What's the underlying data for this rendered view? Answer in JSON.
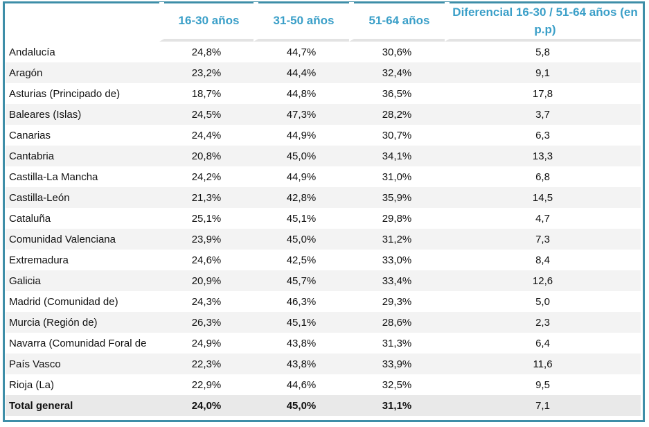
{
  "chart_data": {
    "type": "table",
    "columns": [
      "",
      "16-30 años",
      "31-50 años",
      "51-64 años",
      "Diferencial 16-30 / 51-64 años (en p.p)"
    ],
    "rows": [
      [
        "Andalucía",
        "24,8%",
        "44,7%",
        "30,6%",
        "5,8"
      ],
      [
        "Aragón",
        "23,2%",
        "44,4%",
        "32,4%",
        "9,1"
      ],
      [
        "Asturias (Principado de)",
        "18,7%",
        "44,8%",
        "36,5%",
        "17,8"
      ],
      [
        "Baleares (Islas)",
        "24,5%",
        "47,3%",
        "28,2%",
        "3,7"
      ],
      [
        "Canarias",
        "24,4%",
        "44,9%",
        "30,7%",
        "6,3"
      ],
      [
        "Cantabria",
        "20,8%",
        "45,0%",
        "34,1%",
        "13,3"
      ],
      [
        "Castilla-La Mancha",
        "24,2%",
        "44,9%",
        "31,0%",
        "6,8"
      ],
      [
        "Castilla-León",
        "21,3%",
        "42,8%",
        "35,9%",
        "14,5"
      ],
      [
        "Cataluña",
        "25,1%",
        "45,1%",
        "29,8%",
        "4,7"
      ],
      [
        "Comunidad Valenciana",
        "23,9%",
        "45,0%",
        "31,2%",
        "7,3"
      ],
      [
        "Extremadura",
        "24,6%",
        "42,5%",
        "33,0%",
        "8,4"
      ],
      [
        "Galicia",
        "20,9%",
        "45,7%",
        "33,4%",
        "12,6"
      ],
      [
        "Madrid (Comunidad de)",
        "24,3%",
        "46,3%",
        "29,3%",
        "5,0"
      ],
      [
        "Murcia (Región de)",
        "26,3%",
        "45,1%",
        "28,6%",
        "2,3"
      ],
      [
        "Navarra (Comunidad Foral de",
        "24,9%",
        "43,8%",
        "31,3%",
        "6,4"
      ],
      [
        "País Vasco",
        "22,3%",
        "43,8%",
        "33,9%",
        "11,6"
      ],
      [
        "Rioja (La)",
        "22,9%",
        "44,6%",
        "32,5%",
        "9,5"
      ]
    ],
    "total": [
      "Total general",
      "24,0%",
      "45,0%",
      "31,1%",
      "7,1"
    ],
    "colors": {
      "frame": "#3e8ea8",
      "header_text": "#3a9fc8",
      "alt_row": "#f3f3f3",
      "total_row": "#e9e9e9"
    }
  }
}
